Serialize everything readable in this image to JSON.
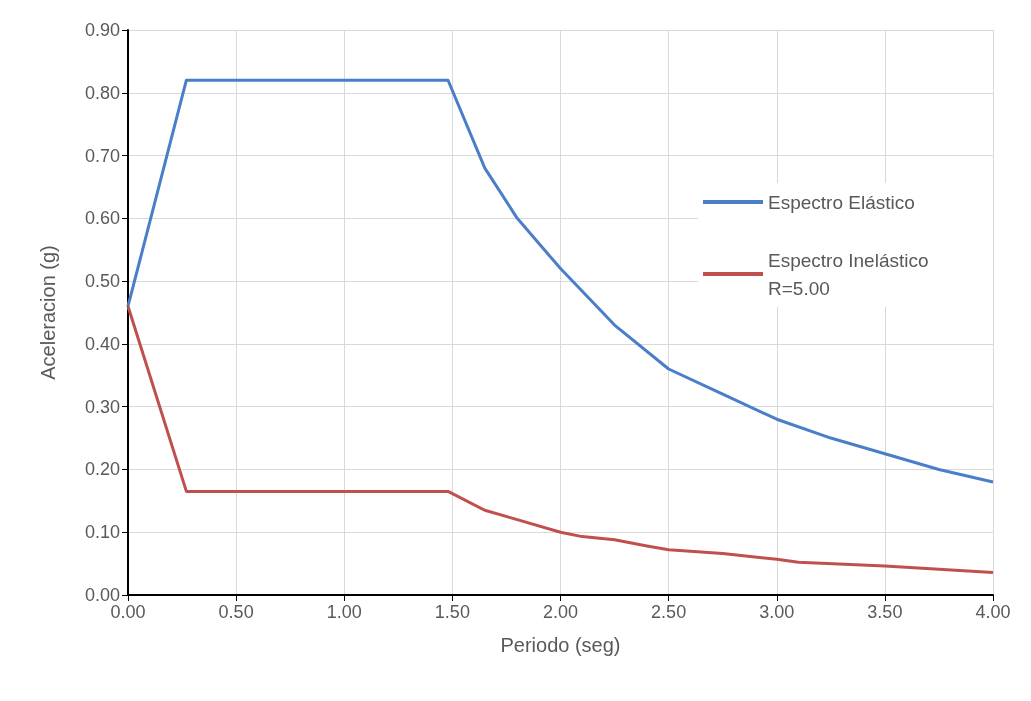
{
  "chart_data": {
    "type": "line",
    "xlabel": "Periodo (seg)",
    "ylabel": "Aceleracion (g)",
    "xlim": [
      0,
      4
    ],
    "xticks": [
      {
        "value": 0,
        "label": "0.00"
      },
      {
        "value": 0.5,
        "label": "0.50"
      },
      {
        "value": 1,
        "label": "1.00"
      },
      {
        "value": 1.5,
        "label": "1.50"
      },
      {
        "value": 2,
        "label": "2.00"
      },
      {
        "value": 2.5,
        "label": "2.50"
      },
      {
        "value": 3,
        "label": "3.00"
      },
      {
        "value": 3.5,
        "label": "3.50"
      },
      {
        "value": 4,
        "label": "4.00"
      }
    ],
    "ylim": [
      0,
      0.9
    ],
    "yticks": [
      {
        "value": 0,
        "label": "0.00"
      },
      {
        "value": 0.1,
        "label": "0.10"
      },
      {
        "value": 0.2,
        "label": "0.20"
      },
      {
        "value": 0.3,
        "label": "0.30"
      },
      {
        "value": 0.4,
        "label": "0.40"
      },
      {
        "value": 0.5,
        "label": "0.50"
      },
      {
        "value": 0.6,
        "label": "0.60"
      },
      {
        "value": 0.7,
        "label": "0.70"
      },
      {
        "value": 0.8,
        "label": "0.80"
      },
      {
        "value": 0.9,
        "label": "0.90"
      }
    ],
    "grid": true,
    "legend": "right",
    "marker": "none",
    "line_style": "solid",
    "series": [
      {
        "name": "Espectro Elástico",
        "color": "#4a7ec8",
        "x": [
          0,
          0.27,
          1.48,
          1.65,
          1.8,
          2.0,
          2.25,
          2.5,
          2.75,
          3.0,
          3.25,
          3.5,
          3.75,
          4.0
        ],
        "values": [
          0.46,
          0.82,
          0.82,
          0.68,
          0.6,
          0.52,
          0.43,
          0.36,
          0.32,
          0.28,
          0.25,
          0.225,
          0.2,
          0.18
        ]
      },
      {
        "name": "Espectro Inelástico R=5.00",
        "color": "#c0504d",
        "x": [
          0,
          0.27,
          1.48,
          1.65,
          1.8,
          2.0,
          2.1,
          2.25,
          2.4,
          2.5,
          2.75,
          3.0,
          3.1,
          3.5,
          4.0
        ],
        "values": [
          0.46,
          0.165,
          0.165,
          0.135,
          0.12,
          0.1,
          0.093,
          0.088,
          0.078,
          0.072,
          0.066,
          0.057,
          0.052,
          0.046,
          0.036
        ]
      }
    ]
  }
}
